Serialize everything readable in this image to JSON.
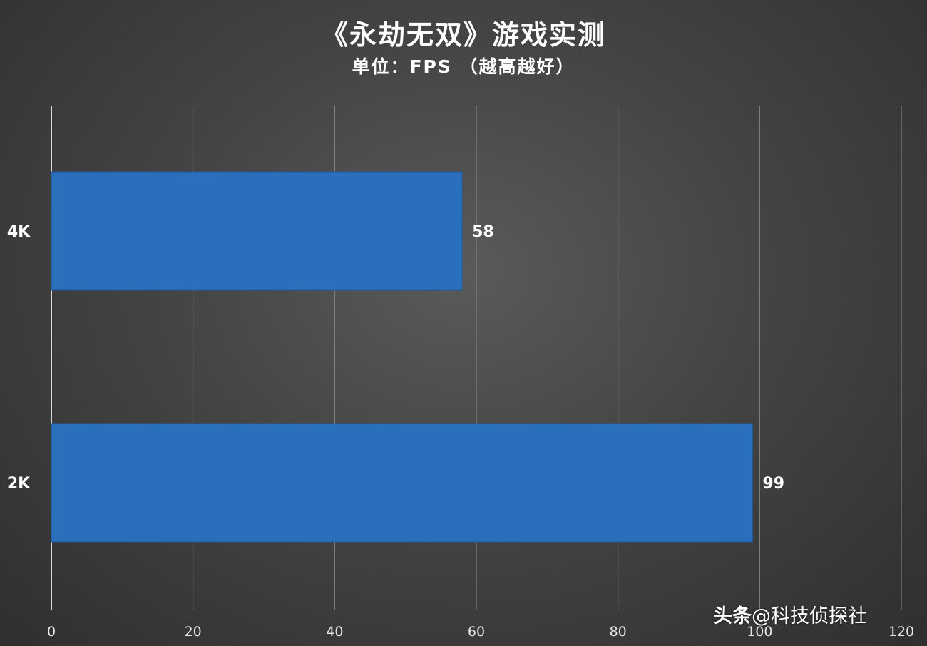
{
  "chart_data": {
    "type": "bar",
    "orientation": "horizontal",
    "title": "《永劫无双》游戏实测",
    "subtitle": "单位：FPS （越高越好）",
    "categories": [
      "4K",
      "2K"
    ],
    "values": [
      58,
      99
    ],
    "xlim": [
      0,
      120
    ],
    "xticks": [
      0,
      20,
      40,
      60,
      80,
      100,
      120
    ],
    "grid": true,
    "bar_color": "#2a6fbb",
    "data_labels": true
  },
  "watermark": {
    "brand": "头条",
    "handle": "@科技侦探社"
  }
}
